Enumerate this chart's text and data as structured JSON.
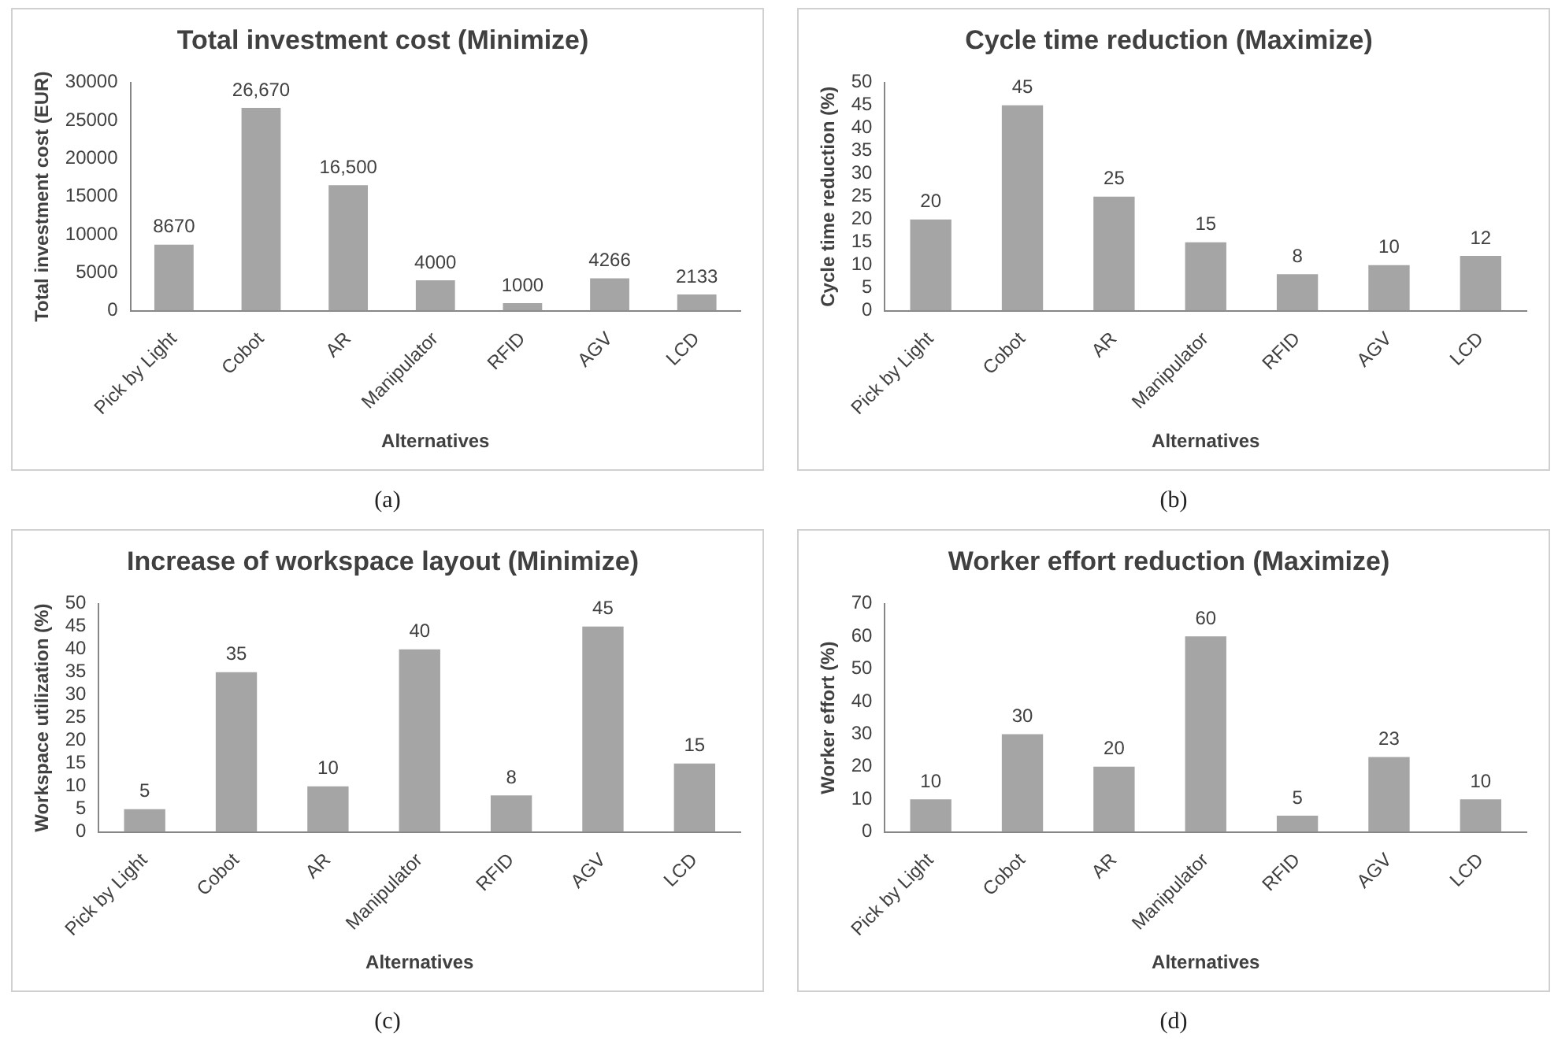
{
  "chart_data": [
    {
      "type": "bar",
      "title": "Total investment cost (Minimize)",
      "xlabel": "Alternatives",
      "ylabel": "Total investment cost (EUR)",
      "categories": [
        "Pick by Light",
        "Cobot",
        "AR",
        "Manipulator",
        "RFID",
        "AGV",
        "LCD"
      ],
      "values": [
        8670,
        26670,
        16500,
        4000,
        1000,
        4266,
        2133
      ],
      "value_labels": [
        "8670",
        "26,670",
        "16,500",
        "4000",
        "1000",
        "4266",
        "2133"
      ],
      "color": "#a5a5a5",
      "ylim": [
        0,
        30000
      ],
      "yticks": [
        0,
        5000,
        10000,
        15000,
        20000,
        25000,
        30000
      ],
      "grid": false,
      "legend": false,
      "annotations": [
        "(a)"
      ]
    },
    {
      "type": "bar",
      "title": "Cycle time reduction (Maximize)",
      "xlabel": "Alternatives",
      "ylabel": "Cycle time reduction (%)",
      "categories": [
        "Pick by Light",
        "Cobot",
        "AR",
        "Manipulator",
        "RFID",
        "AGV",
        "LCD"
      ],
      "values": [
        20,
        45,
        25,
        15,
        8,
        10,
        12
      ],
      "data_labels": true,
      "color": "#a5a5a5",
      "ylim": [
        0,
        50
      ],
      "yticks": [
        0,
        5,
        10,
        15,
        20,
        25,
        30,
        35,
        40,
        45,
        50
      ],
      "grid": false,
      "legend": false,
      "annotations": [
        "(b)"
      ]
    },
    {
      "type": "bar",
      "title": "Increase of workspace layout (Minimize)",
      "xlabel": "Alternatives",
      "ylabel": "Workspace utilization (%)",
      "categories": [
        "Pick by Light",
        "Cobot",
        "AR",
        "Manipulator",
        "RFID",
        "AGV",
        "LCD"
      ],
      "values": [
        5,
        35,
        10,
        40,
        8,
        45,
        15
      ],
      "data_labels": true,
      "color": "#a5a5a5",
      "ylim": [
        0,
        50
      ],
      "yticks": [
        0,
        5,
        10,
        15,
        20,
        25,
        30,
        35,
        40,
        45,
        50
      ],
      "grid": false,
      "legend": false,
      "annotations": [
        "(c)"
      ]
    },
    {
      "type": "bar",
      "title": "Worker effort reduction (Maximize)",
      "xlabel": "Alternatives",
      "ylabel": "Worker effort (%)",
      "categories": [
        "Pick by Light",
        "Cobot",
        "AR",
        "Manipulator",
        "RFID",
        "AGV",
        "LCD"
      ],
      "values": [
        10,
        30,
        20,
        60,
        5,
        23,
        10
      ],
      "data_labels": true,
      "color": "#a5a5a5",
      "ylim": [
        0,
        70
      ],
      "yticks": [
        0,
        10,
        20,
        30,
        40,
        50,
        60,
        70
      ],
      "grid": false,
      "legend": false,
      "annotations": [
        "(d)"
      ]
    }
  ]
}
